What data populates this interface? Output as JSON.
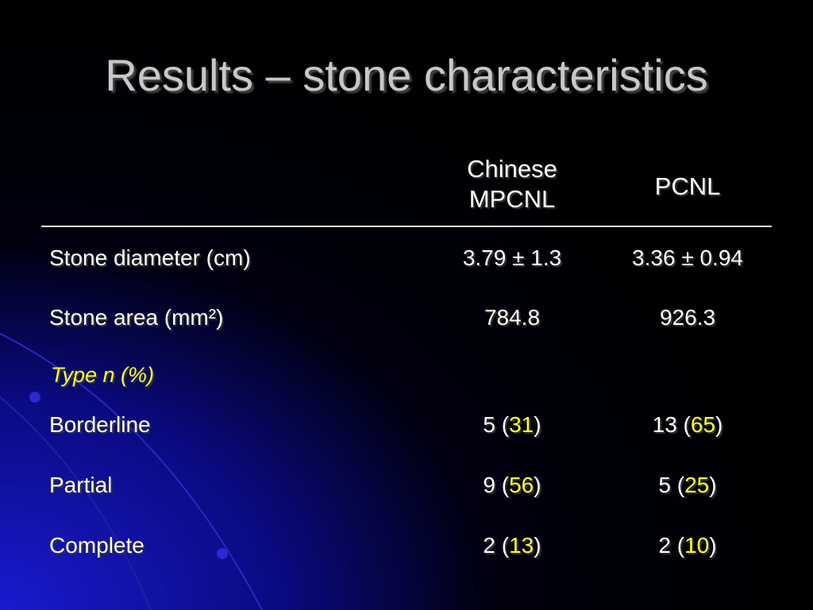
{
  "title": "Results – stone characteristics",
  "table": {
    "header": [
      [
        "Chinese",
        "MPCNL"
      ],
      [
        "PCNL"
      ]
    ],
    "rows": [
      {
        "label": "Stone diameter (cm)",
        "cells": [
          "3.79 ± 1.3",
          "3.36 ± 0.94"
        ]
      },
      {
        "label": "Stone area (mm²)",
        "cells": [
          "784.8",
          "926.3"
        ]
      }
    ],
    "section": "Type n (%)",
    "type_rows": [
      {
        "label": "Borderline",
        "cells": [
          {
            "count": "5 (",
            "pct": "31",
            "close": ")"
          },
          {
            "count": "13 (",
            "pct": "65",
            "close": ")"
          }
        ]
      },
      {
        "label": "Partial",
        "cells": [
          {
            "count": "9 (",
            "pct": "56",
            "close": ")"
          },
          {
            "count": "5 (",
            "pct": "25",
            "close": ")"
          }
        ]
      },
      {
        "label": "Complete",
        "cells": [
          {
            "count": "2 (",
            "pct": "13",
            "close": ")"
          },
          {
            "count": "2 (",
            "pct": "10",
            "close": ")"
          }
        ]
      }
    ]
  }
}
